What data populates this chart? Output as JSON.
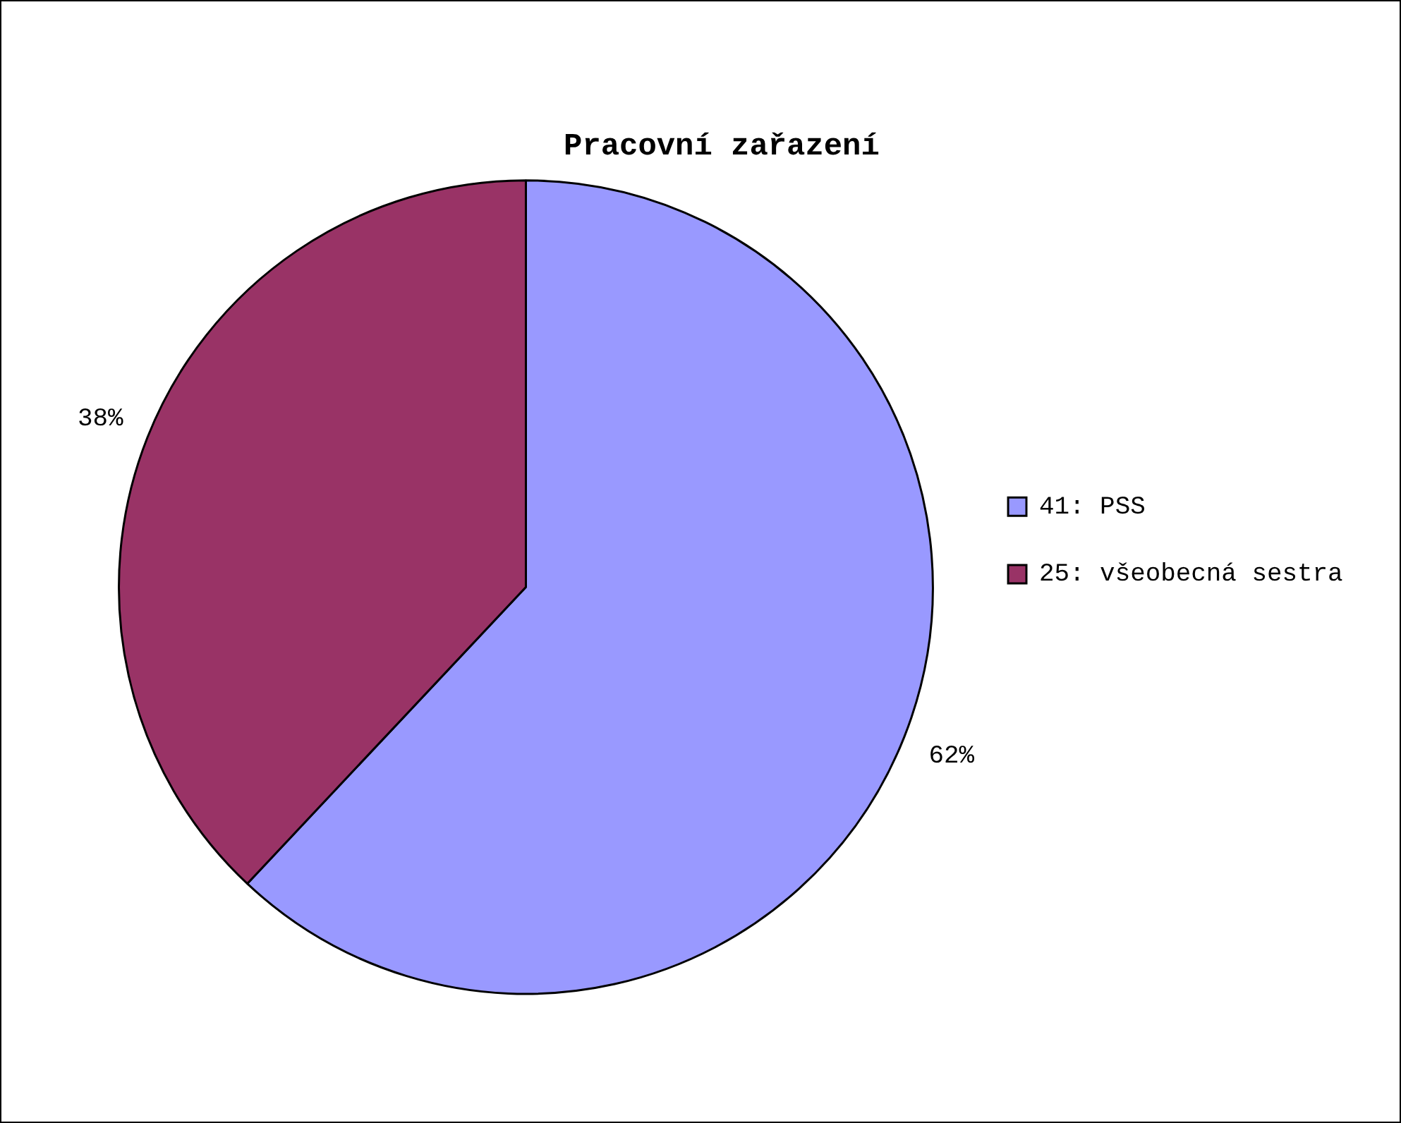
{
  "chart_data": {
    "type": "pie",
    "title": "Pracovní zařazení",
    "categories": [
      "41: PSS",
      "25: všeobecná sestra"
    ],
    "values": [
      62,
      38
    ],
    "colors": [
      "#9999ff",
      "#993366"
    ],
    "value_labels": [
      "62%",
      "38%"
    ],
    "legend": "right"
  }
}
